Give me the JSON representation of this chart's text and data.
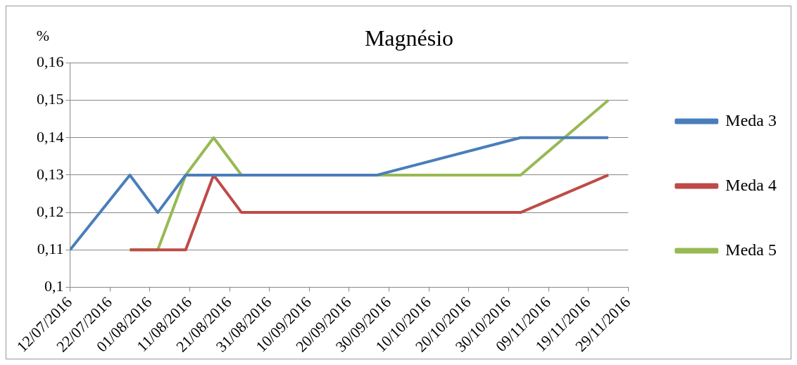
{
  "chart_data": {
    "type": "line",
    "title": "Magnésio",
    "ylabel": "%",
    "series": [
      {
        "name": "Meda 3",
        "color": "#4a7ebb",
        "x": [
          "2016-07-12",
          "2016-07-27",
          "2016-08-03",
          "2016-08-10",
          "2016-08-17",
          "2016-08-24",
          "2016-09-27",
          "2016-11-02",
          "2016-11-24"
        ],
        "values": [
          0.11,
          0.13,
          0.12,
          0.13,
          0.13,
          0.13,
          0.13,
          0.14,
          0.14
        ]
      },
      {
        "name": "Meda 4",
        "color": "#be4b48",
        "x": [
          "2016-07-27",
          "2016-08-03",
          "2016-08-10",
          "2016-08-17",
          "2016-08-24",
          "2016-11-02",
          "2016-11-24"
        ],
        "values": [
          0.11,
          0.11,
          0.11,
          0.13,
          0.12,
          0.12,
          0.13
        ]
      },
      {
        "name": "Meda 5",
        "color": "#98b954",
        "x": [
          "2016-07-27",
          "2016-08-03",
          "2016-08-10",
          "2016-08-17",
          "2016-08-24",
          "2016-11-02",
          "2016-11-24"
        ],
        "values": [
          0.11,
          0.11,
          0.13,
          0.14,
          0.13,
          0.13,
          0.15
        ]
      }
    ],
    "xlim": [
      "2016-07-12",
      "2016-11-29"
    ],
    "xticks": [
      {
        "value": "2016-07-12",
        "label": "12/07/2016"
      },
      {
        "value": "2016-07-22",
        "label": "22/07/2016"
      },
      {
        "value": "2016-08-01",
        "label": "01/08/2016"
      },
      {
        "value": "2016-08-11",
        "label": "11/08/2016"
      },
      {
        "value": "2016-08-21",
        "label": "21/08/2016"
      },
      {
        "value": "2016-08-31",
        "label": "31/08/2016"
      },
      {
        "value": "2016-09-10",
        "label": "10/09/2016"
      },
      {
        "value": "2016-09-20",
        "label": "20/09/2016"
      },
      {
        "value": "2016-09-30",
        "label": "30/09/2016"
      },
      {
        "value": "2016-10-10",
        "label": "10/10/2016"
      },
      {
        "value": "2016-10-20",
        "label": "20/10/2016"
      },
      {
        "value": "2016-10-30",
        "label": "30/10/2016"
      },
      {
        "value": "2016-11-09",
        "label": "09/11/2016"
      },
      {
        "value": "2016-11-19",
        "label": "19/11/2016"
      },
      {
        "value": "2016-11-29",
        "label": "29/11/2016"
      }
    ],
    "ylim": [
      0.1,
      0.16
    ],
    "yticks": [
      {
        "value": 0.1,
        "label": "0,1"
      },
      {
        "value": 0.11,
        "label": "0,11"
      },
      {
        "value": 0.12,
        "label": "0,12"
      },
      {
        "value": 0.13,
        "label": "0,13"
      },
      {
        "value": 0.14,
        "label": "0,14"
      },
      {
        "value": 0.15,
        "label": "0,15"
      },
      {
        "value": 0.16,
        "label": "0,16"
      }
    ],
    "grid": "y",
    "legend": "right",
    "marker": "none",
    "line_style": "solid"
  }
}
